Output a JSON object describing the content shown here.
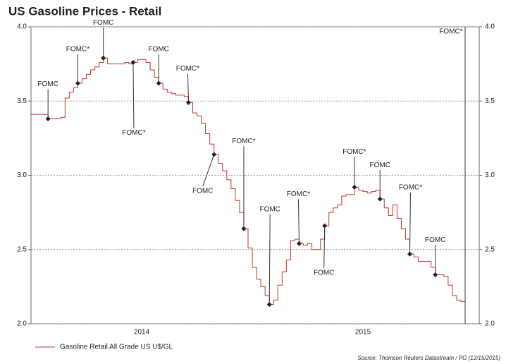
{
  "chart_data": {
    "type": "line",
    "title": "US Gasoline Prices - Retail",
    "categories": [
      null,
      null,
      null,
      null,
      null,
      null,
      null,
      null,
      null,
      null,
      null,
      null,
      null,
      null,
      null,
      null,
      null,
      null,
      null,
      null,
      null,
      null,
      null,
      null,
      null,
      null,
      "2014",
      null,
      null,
      null,
      null,
      null,
      null,
      null,
      null,
      null,
      null,
      null,
      null,
      null,
      null,
      null,
      null,
      null,
      null,
      null,
      null,
      null,
      null,
      null,
      null,
      null,
      null,
      null,
      null,
      null,
      null,
      null,
      null,
      null,
      null,
      null,
      null,
      null,
      null,
      null,
      null,
      null,
      null,
      null,
      null,
      null,
      null,
      null,
      null,
      null,
      null,
      null,
      "2015",
      null,
      null,
      null,
      null,
      null,
      null,
      null,
      null,
      null,
      null,
      null,
      null,
      null,
      null,
      null,
      null,
      null,
      null,
      null,
      null,
      null,
      null,
      null,
      null
    ],
    "series": [
      {
        "name": "Gasoline Retail All Grade US U$/GL",
        "color": "#c0392b",
        "values": [
          3.41,
          3.41,
          3.41,
          3.41,
          3.38,
          3.38,
          3.38,
          3.39,
          3.52,
          3.56,
          3.59,
          3.62,
          3.65,
          3.68,
          3.71,
          3.73,
          3.76,
          3.79,
          3.75,
          3.75,
          3.75,
          3.75,
          3.76,
          3.75,
          3.76,
          3.78,
          3.78,
          3.76,
          3.71,
          3.66,
          3.62,
          3.58,
          3.56,
          3.55,
          3.54,
          3.54,
          3.53,
          3.49,
          3.42,
          3.4,
          3.35,
          3.28,
          3.21,
          3.14,
          3.08,
          3.03,
          2.97,
          2.91,
          2.83,
          2.75,
          2.64,
          2.51,
          2.38,
          2.3,
          2.25,
          2.19,
          2.13,
          2.16,
          2.26,
          2.35,
          2.43,
          2.56,
          2.57,
          2.54,
          2.53,
          2.54,
          2.5,
          2.5,
          2.57,
          2.66,
          2.75,
          2.78,
          2.8,
          2.86,
          2.87,
          2.87,
          2.92,
          2.9,
          2.89,
          2.88,
          2.89,
          2.9,
          2.84,
          2.78,
          2.73,
          2.8,
          2.71,
          2.64,
          2.57,
          2.47,
          2.45,
          2.42,
          2.42,
          2.42,
          2.38,
          2.33,
          2.33,
          2.32,
          2.26,
          2.19,
          2.16,
          2.15,
          2.14
        ]
      }
    ],
    "ylim": [
      2,
      4
    ],
    "yticks": [
      {
        "value": 2,
        "label": "2.0"
      },
      {
        "value": 2.5,
        "label": "2.5"
      },
      {
        "value": 3,
        "label": "3.0"
      },
      {
        "value": 3.5,
        "label": "3.5"
      },
      {
        "value": 4,
        "label": "4.0"
      }
    ],
    "grid": true,
    "annotations": [
      "FOMC",
      "FOMC*",
      "FOMC",
      "FOMC*",
      "FOMC",
      "FOMC*",
      "FOMC",
      "FOMC*",
      "FOMC",
      "FOMC*",
      "FOMC",
      "FOMC*",
      "FOMC",
      "FOMC*",
      "FOMC",
      "FOMC*"
    ],
    "source": "Source: Thomson Reuters Datastream / PG (12/15/2015)"
  }
}
